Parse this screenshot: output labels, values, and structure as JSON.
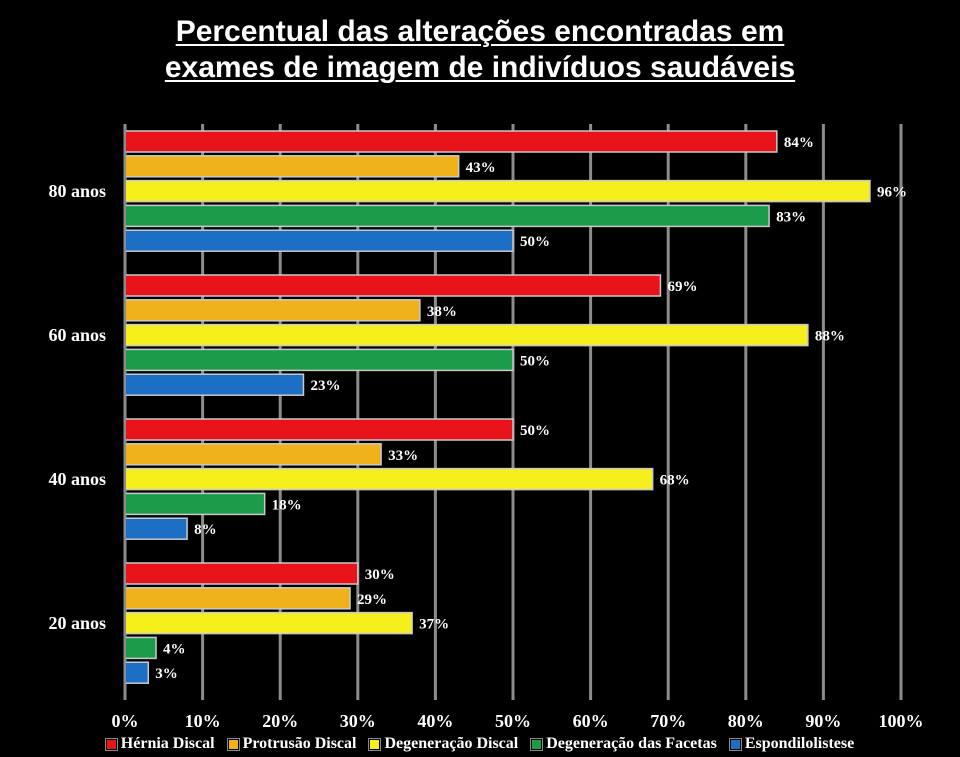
{
  "chart_data": {
    "type": "bar",
    "orientation": "horizontal",
    "title_lines": [
      "Percentual das alterações encontradas em",
      "exames de imagem de indivíduos saudáveis"
    ],
    "categories": [
      "80 anos",
      "60 anos",
      "40 anos",
      "20 anos"
    ],
    "x_ticks": [
      "0%",
      "10%",
      "20%",
      "30%",
      "40%",
      "50%",
      "60%",
      "70%",
      "80%",
      "90%",
      "100%"
    ],
    "xlim": [
      0,
      100
    ],
    "grid": true,
    "legend_position": "bottom",
    "series": [
      {
        "name": "Hérnia Discal",
        "color": "#e8131b",
        "values": [
          84,
          69,
          50,
          30
        ],
        "labels": [
          "84%",
          "69%",
          "50%",
          "30%"
        ]
      },
      {
        "name": "Protrusão Discal",
        "color": "#f0b21a",
        "values": [
          43,
          38,
          33,
          29
        ],
        "labels": [
          "43%",
          "38%",
          "33%",
          "29%"
        ]
      },
      {
        "name": "Degeneração Discal",
        "color": "#f5f01c",
        "values": [
          96,
          88,
          68,
          37
        ],
        "labels": [
          "96%",
          "88%",
          "68%",
          "37%"
        ]
      },
      {
        "name": "Degeneração das Facetas",
        "color": "#1a9c4a",
        "values": [
          83,
          50,
          18,
          4
        ],
        "labels": [
          "83%",
          "50%",
          "18%",
          "4%"
        ]
      },
      {
        "name": "Espondilolistese",
        "color": "#1c6fc4",
        "values": [
          50,
          23,
          8,
          3
        ],
        "labels": [
          "50%",
          "23%",
          "8%",
          "3%"
        ]
      }
    ]
  }
}
